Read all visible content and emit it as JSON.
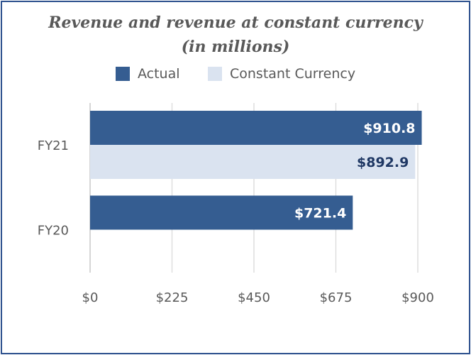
{
  "chart_data": {
    "type": "bar",
    "orientation": "horizontal",
    "title": "Revenue and revenue at constant currency",
    "subtitle": "(in millions)",
    "categories": [
      "FY21",
      "FY20"
    ],
    "series": [
      {
        "name": "Actual",
        "values": [
          910.8,
          721.4
        ],
        "labels": [
          "$910.8",
          "$721.4"
        ],
        "color": "#355d91",
        "label_color": "#ffffff"
      },
      {
        "name": "Constant Currency",
        "values": [
          892.9,
          null
        ],
        "labels": [
          "$892.9",
          ""
        ],
        "color": "#dae3f0",
        "label_color": "#1f3864"
      }
    ],
    "x_ticks": [
      0,
      225,
      450,
      675,
      900
    ],
    "x_tick_labels": [
      "$0",
      "$225",
      "$450",
      "$675",
      "$900"
    ],
    "xlim": [
      0,
      900
    ],
    "grid": true,
    "legend_position": "top"
  },
  "colors": {
    "border": "#2f528f",
    "grid": "#d9d9d9",
    "axis": "#bfbfbf",
    "text": "#595959"
  }
}
